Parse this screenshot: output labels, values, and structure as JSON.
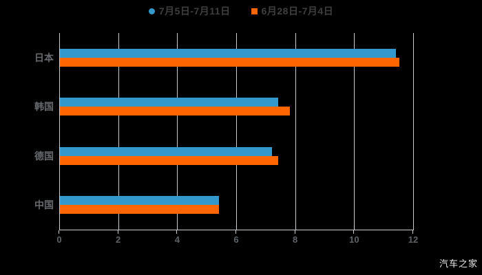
{
  "legend": {
    "items": [
      {
        "label": "7月5日-7月11日",
        "color": "#3399cc",
        "marker": "circle"
      },
      {
        "label": "6月28日-7月4日",
        "color": "#ff6600",
        "marker": "square"
      }
    ]
  },
  "watermark": "汽车之家",
  "colors": {
    "background": "#000000",
    "series_blue": "#3399cc",
    "series_orange": "#ff6600",
    "grid": "#c9ced3",
    "axis_text": "#5e6368",
    "category_text": "#666a6e",
    "legend_text": "#3f3f3f"
  },
  "chart_data": {
    "type": "bar",
    "orientation": "horizontal",
    "title": "",
    "xlabel": "",
    "ylabel": "",
    "categories": [
      "日本",
      "韩国",
      "德国",
      "中国"
    ],
    "series": [
      {
        "name": "7月5日-7月11日",
        "color": "#3399cc",
        "marker": "circle",
        "values": [
          11.4,
          7.4,
          7.2,
          5.4
        ]
      },
      {
        "name": "6月28日-7月4日",
        "color": "#ff6600",
        "marker": "square",
        "values": [
          11.5,
          7.8,
          7.4,
          5.4
        ]
      }
    ],
    "xlim": [
      0,
      12
    ],
    "xticks": [
      0,
      2,
      4,
      6,
      8,
      10,
      12
    ],
    "grid": "vertical",
    "legend_position": "top"
  }
}
